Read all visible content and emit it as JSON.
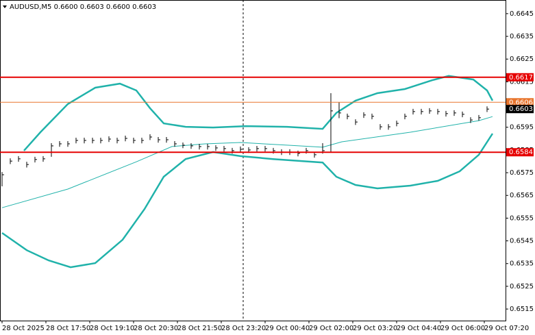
{
  "chart_data": {
    "type": "ohlc",
    "title": "AUDUSD,M5  0.6600 0.6603 0.6600 0.6603",
    "xlim": [
      -0.75,
      183.75
    ],
    "ylim": [
      0.65099,
      0.6651
    ],
    "xticks": [
      {
        "value": 0,
        "label": "28 Oct 2025"
      },
      {
        "value": 16,
        "label": "28 Oct 17:50"
      },
      {
        "value": 32,
        "label": "28 Oct 19:10"
      },
      {
        "value": 48,
        "label": "28 Oct 20:30"
      },
      {
        "value": 64,
        "label": "28 Oct 21:50"
      },
      {
        "value": 80,
        "label": "28 Oct 23:20"
      },
      {
        "value": 96,
        "label": "29 Oct 00:40"
      },
      {
        "value": 112,
        "label": "29 Oct 02:00"
      },
      {
        "value": 128,
        "label": "29 Oct 03:20"
      },
      {
        "value": 144,
        "label": "29 Oct 04:40"
      },
      {
        "value": 160,
        "label": "29 Oct 06:00"
      },
      {
        "value": 176,
        "label": "29 Oct 07:20"
      }
    ],
    "yticks": [
      0.6645,
      0.6635,
      0.6625,
      0.6615,
      0.6605,
      0.6595,
      0.6585,
      0.6575,
      0.6565,
      0.6555,
      0.6545,
      0.6535,
      0.6525,
      0.6515
    ],
    "candles": {
      "color": "#000000",
      "x": [
        0,
        3,
        6,
        9,
        12,
        15,
        18,
        21,
        24,
        27,
        30,
        33,
        36,
        39,
        42,
        45,
        48,
        51,
        54,
        57,
        60,
        63,
        66,
        69,
        72,
        75,
        78,
        81,
        84,
        87,
        90,
        93,
        96,
        99,
        102,
        105,
        108,
        111,
        114,
        117,
        120,
        123,
        126,
        129,
        132,
        135,
        138,
        141,
        144,
        147,
        150,
        153,
        156,
        159,
        162,
        165,
        168,
        171,
        174,
        177
      ],
      "high": [
        0.65753,
        0.65813,
        0.65823,
        0.65798,
        0.6582,
        0.65823,
        0.6588,
        0.65889,
        0.65889,
        0.65904,
        0.65904,
        0.65904,
        0.65904,
        0.6591,
        0.65904,
        0.65913,
        0.65904,
        0.65904,
        0.65919,
        0.65907,
        0.65907,
        0.65889,
        0.65883,
        0.6588,
        0.65877,
        0.65877,
        0.65871,
        0.65868,
        0.65859,
        0.65865,
        0.65862,
        0.65868,
        0.65868,
        0.65859,
        0.65853,
        0.65853,
        0.65847,
        0.65859,
        0.65841,
        0.6588,
        0.661,
        0.6606,
        0.6601,
        0.65985,
        0.66016,
        0.6601,
        0.65964,
        0.65964,
        0.65979,
        0.6601,
        0.66031,
        0.66031,
        0.66034,
        0.66031,
        0.66022,
        0.66025,
        0.66019,
        0.65994,
        0.66004,
        0.66042
      ],
      "low": [
        0.6569,
        0.65788,
        0.65798,
        0.65773,
        0.65795,
        0.65798,
        0.6582,
        0.65864,
        0.65864,
        0.65879,
        0.65879,
        0.65879,
        0.65879,
        0.65885,
        0.65879,
        0.65888,
        0.65879,
        0.65879,
        0.65894,
        0.65882,
        0.65882,
        0.65864,
        0.65858,
        0.65855,
        0.65852,
        0.65852,
        0.65846,
        0.65843,
        0.65834,
        0.6584,
        0.65837,
        0.65843,
        0.65843,
        0.65834,
        0.65828,
        0.65828,
        0.65822,
        0.65834,
        0.65816,
        0.65834,
        0.65841,
        0.6599,
        0.65985,
        0.6596,
        0.65991,
        0.65985,
        0.65939,
        0.65939,
        0.65954,
        0.65985,
        0.66006,
        0.66006,
        0.66009,
        0.66006,
        0.65997,
        0.66,
        0.65994,
        0.65969,
        0.65979,
        0.66017
      ],
      "close": [
        0.65741,
        0.65801,
        0.65811,
        0.65786,
        0.65808,
        0.65811,
        0.65868,
        0.65877,
        0.65877,
        0.65892,
        0.65892,
        0.65892,
        0.65892,
        0.65898,
        0.65892,
        0.65901,
        0.65892,
        0.65892,
        0.65907,
        0.65895,
        0.65895,
        0.65877,
        0.65871,
        0.65868,
        0.65865,
        0.65865,
        0.65859,
        0.65856,
        0.65847,
        0.65853,
        0.6585,
        0.65856,
        0.65856,
        0.65847,
        0.65841,
        0.65841,
        0.65835,
        0.65847,
        0.65829,
        0.65847,
        0.66022,
        0.66013,
        0.65998,
        0.65973,
        0.66004,
        0.65998,
        0.65952,
        0.65952,
        0.65967,
        0.65998,
        0.66019,
        0.66019,
        0.66022,
        0.66019,
        0.6601,
        0.66013,
        0.66007,
        0.65982,
        0.65992,
        0.6603
      ]
    },
    "lines": [
      {
        "color": "#20b2aa",
        "width": 2.5,
        "x": [
          8,
          14,
          24,
          34,
          43,
          49,
          54,
          59,
          67,
          77,
          89,
          104,
          117,
          122,
          129,
          137,
          147,
          157,
          163,
          172,
          177,
          179
        ],
        "values": [
          0.65847,
          0.65928,
          0.66052,
          0.66124,
          0.66142,
          0.66112,
          0.66034,
          0.65967,
          0.65952,
          0.65949,
          0.65955,
          0.65952,
          0.65943,
          0.66013,
          0.66067,
          0.661,
          0.66118,
          0.66157,
          0.66176,
          0.6616,
          0.66112,
          0.66067
        ]
      },
      {
        "color": "#20b2aa",
        "width": 1,
        "x": [
          0,
          24,
          49,
          62,
          74,
          87,
          104,
          117,
          124,
          149,
          174,
          179
        ],
        "values": [
          0.65596,
          0.65678,
          0.65798,
          0.65865,
          0.65877,
          0.65883,
          0.65871,
          0.65862,
          0.65886,
          0.65928,
          0.65979,
          0.65997
        ]
      },
      {
        "color": "#20b2aa",
        "width": 2.5,
        "x": [
          0,
          9,
          17,
          25,
          34,
          44,
          52,
          59,
          67,
          77,
          87,
          99,
          117,
          122,
          129,
          137,
          149,
          159,
          167,
          174,
          179
        ],
        "values": [
          0.65485,
          0.65409,
          0.65364,
          0.65334,
          0.65352,
          0.65455,
          0.6559,
          0.65732,
          0.6581,
          0.65841,
          0.65823,
          0.6581,
          0.65795,
          0.65732,
          0.65696,
          0.65681,
          0.65693,
          0.65714,
          0.65756,
          0.65829,
          0.65922
        ]
      }
    ],
    "levels": [
      {
        "value": 0.6617,
        "color": "#e60000"
      },
      {
        "value": 0.6606,
        "color": "#e8742c"
      },
      {
        "value": 0.6584,
        "color": "#e60000"
      }
    ],
    "last_price": 0.6603,
    "vline_x": 88
  }
}
